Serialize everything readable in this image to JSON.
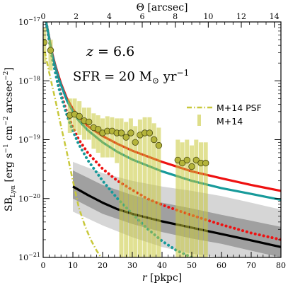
{
  "chart_data": {
    "type": "line",
    "title": "",
    "xlabel": "r [pkpc]",
    "ylabel": "SB_Lyα [erg s^-1 cm^-2 arcsec^-2]",
    "top_xlabel": "Θ [arcsec]",
    "xlim": [
      0,
      80
    ],
    "ylim": [
      1e-21,
      1e-17
    ],
    "yscale": "log",
    "top_xlim": [
      0,
      14.4
    ],
    "x_ticks": [
      "0",
      "10",
      "20",
      "30",
      "40",
      "50",
      "60",
      "70",
      "80"
    ],
    "y_ticks": [
      "10^-21",
      "10^-20",
      "10^-19",
      "10^-18",
      "10^-17"
    ],
    "top_ticks": [
      "0",
      "2",
      "4",
      "6",
      "8",
      "10",
      "12",
      "14"
    ],
    "grid": false,
    "legend_placement": "center-right",
    "annotations": [
      "z = 6.6",
      "SFR = 20 M☉ yr^-1"
    ],
    "colors": {
      "red": "#ee1111",
      "teal": "#179a9a",
      "black": "#000000",
      "olive": "#c8c83a",
      "marker_face": "#b4b43a",
      "band_dark": "#a0a0a0",
      "band_light": "#d6d6d6"
    },
    "series": [
      {
        "name": "M+14 PSF",
        "style": "dashdot",
        "color": "#c8c83a",
        "x": [
          0.5,
          2,
          4,
          6,
          8,
          10,
          12,
          14,
          16,
          18,
          19.5
        ],
        "y": [
          3.2e-18,
          1.4e-18,
          5e-19,
          1.7e-19,
          6e-20,
          2e-20,
          7e-21,
          3.5e-21,
          2e-21,
          1.3e-21,
          1e-21
        ]
      },
      {
        "name": "M+14",
        "type": "errorbar",
        "color": "#c8c83a",
        "x": [
          0.3,
          2.5,
          9.0,
          10.6,
          12.2,
          13.8,
          15.4,
          17.0,
          18.5,
          20.0,
          21.6,
          23.2,
          24.8,
          26.3,
          27.9,
          29.5,
          31.0,
          32.6,
          34.2,
          35.8,
          37.3,
          38.9,
          45.3,
          46.8,
          48.4,
          50.0,
          51.5,
          53.1,
          54.7
        ],
        "y": [
          4.5e-18,
          3.3e-18,
          2.6e-19,
          2.7e-19,
          2.5e-19,
          2.1e-19,
          2e-19,
          1.6e-19,
          1.5e-19,
          1.3e-19,
          1.4e-19,
          1.4e-19,
          1.3e-19,
          1.3e-19,
          1.1e-19,
          1.3e-19,
          9e-20,
          1.2e-19,
          1.3e-19,
          1.3e-19,
          1e-19,
          8e-20,
          4.5e-20,
          4e-20,
          4.5e-20,
          3.5e-20,
          4.5e-20,
          4e-20,
          4e-20
        ],
        "err_high": [
          8e-18,
          5e-18,
          5e-19,
          5e-19,
          4.5e-19,
          3.5e-19,
          3.5e-19,
          2.8e-19,
          2.6e-19,
          2.3e-19,
          2.5e-19,
          2.4e-19,
          2.3e-19,
          2.3e-19,
          2e-19,
          2.3e-19,
          1.7e-19,
          2.2e-19,
          2.4e-19,
          2.4e-19,
          1.9e-19,
          1.6e-19,
          1e-19,
          9e-20,
          1e-19,
          8e-20,
          1e-19,
          9e-20,
          9e-20
        ],
        "err_low": [
          2e-18,
          1.5e-18,
          1.3e-19,
          1.4e-19,
          1.2e-19,
          1e-19,
          1e-19,
          7e-20,
          6e-20,
          5e-20,
          5e-20,
          5e-20,
          4e-20,
          1e-21,
          1e-21,
          1e-21,
          1e-21,
          1e-21,
          1e-21,
          1e-21,
          1e-21,
          1e-21,
          1e-21,
          1e-21,
          1e-21,
          1e-21,
          1e-21,
          1e-21,
          1e-21
        ]
      },
      {
        "name": "",
        "style": "solid",
        "color": "#ee1111",
        "x": [
          1,
          2,
          3,
          4,
          5,
          6,
          8,
          10,
          12,
          15,
          20,
          25,
          30,
          40,
          50,
          60,
          70,
          80
        ],
        "y": [
          1e-17,
          5.5e-18,
          3e-18,
          1.9e-18,
          1.3e-18,
          9e-19,
          5e-19,
          3.3e-19,
          2.4e-19,
          1.7e-19,
          1.15e-19,
          8.5e-20,
          6.5e-20,
          4.2e-20,
          2.9e-20,
          2.2e-20,
          1.7e-20,
          1.35e-20
        ]
      },
      {
        "name": "",
        "style": "solid",
        "color": "#179a9a",
        "x": [
          1,
          2,
          3,
          4,
          5,
          6,
          8,
          10,
          12,
          15,
          20,
          25,
          30,
          40,
          50,
          60,
          70,
          80
        ],
        "y": [
          1e-17,
          5.4e-18,
          2.9e-18,
          1.8e-18,
          1.2e-18,
          8.5e-19,
          4.6e-19,
          3e-19,
          2.1e-19,
          1.45e-19,
          9e-20,
          6.2e-20,
          4.6e-20,
          2.9e-20,
          2e-20,
          1.5e-20,
          1.2e-20,
          9.5e-21
        ]
      },
      {
        "name": "",
        "style": "dotted",
        "color": "#ee1111",
        "x": [
          1,
          2,
          3,
          4,
          5,
          6,
          8,
          10,
          12,
          15,
          20,
          25,
          30,
          35,
          40,
          50,
          60,
          70,
          80
        ],
        "y": [
          1e-17,
          5e-18,
          2.6e-18,
          1.5e-18,
          9e-19,
          6e-19,
          2.9e-19,
          1.6e-19,
          1e-19,
          6e-20,
          3.2e-20,
          2e-20,
          1.4e-20,
          1e-20,
          7.8e-21,
          5.2e-21,
          3.6e-21,
          2.6e-21,
          2e-21
        ]
      },
      {
        "name": "",
        "style": "dotted",
        "color": "#179a9a",
        "x": [
          1,
          2,
          3,
          4,
          5,
          6,
          8,
          10,
          12,
          15,
          20,
          25,
          30,
          35,
          40,
          45,
          50
        ],
        "y": [
          1e-17,
          5e-18,
          2.5e-18,
          1.45e-18,
          8.5e-19,
          5.5e-19,
          2.6e-19,
          1.4e-19,
          8.3e-20,
          4.5e-20,
          2e-20,
          1e-20,
          5.5e-21,
          3.1e-21,
          1.9e-21,
          1.3e-21,
          1e-21
        ]
      },
      {
        "name": "",
        "style": "solid",
        "color": "#000000",
        "x": [
          10,
          15,
          20,
          25,
          30,
          40,
          50,
          60,
          70,
          80
        ],
        "y": [
          1.6e-20,
          1.15e-20,
          8.5e-21,
          6.6e-21,
          5.5e-21,
          4.1e-21,
          3.2e-21,
          2.5e-21,
          1.95e-21,
          1.5e-21
        ]
      }
    ],
    "bands": [
      {
        "color": "#d6d6d6",
        "x": [
          10,
          20,
          30,
          40,
          50,
          60,
          70,
          80
        ],
        "upper": [
          4.2e-20,
          2.7e-20,
          2e-20,
          1.6e-20,
          1.35e-20,
          1.1e-20,
          8.5e-21,
          6.5e-21
        ],
        "lower": [
          6e-21,
          3.5e-21,
          2.2e-21,
          1.5e-21,
          1.15e-21,
          1e-21,
          1e-21,
          1e-21
        ]
      },
      {
        "color": "#a0a0a0",
        "x": [
          10,
          20,
          30,
          40,
          50,
          60,
          70,
          80
        ],
        "upper": [
          3e-20,
          1.7e-20,
          1.15e-20,
          8.5e-21,
          6.8e-21,
          5.3e-21,
          4.2e-21,
          3.3e-21
        ],
        "lower": [
          1e-20,
          5.5e-21,
          3.7e-21,
          2.7e-21,
          2.1e-21,
          1.7e-21,
          1.3e-21,
          1e-21
        ]
      }
    ]
  }
}
